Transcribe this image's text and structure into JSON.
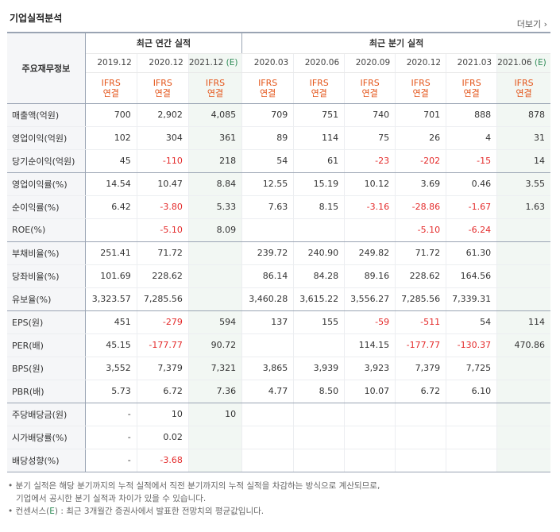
{
  "title": "기업실적분석",
  "more": "더보기",
  "header": {
    "row_label": "주요재무정보",
    "annual": "최근 연간 실적",
    "quarter": "최근 분기 실적",
    "periods": [
      "2019.12",
      "2020.12",
      "2021.12",
      "2020.03",
      "2020.06",
      "2020.09",
      "2020.12",
      "2021.03",
      "2021.06"
    ],
    "est_mark": "(E)",
    "ifrs": "IFRS",
    "consol": "연결"
  },
  "rows": [
    {
      "label": "매출액(억원)",
      "values": [
        "700",
        "2,902",
        "4,085",
        "709",
        "751",
        "740",
        "701",
        "888",
        "878"
      ]
    },
    {
      "label": "영업이익(억원)",
      "values": [
        "102",
        "304",
        "361",
        "89",
        "114",
        "75",
        "26",
        "4",
        "31"
      ]
    },
    {
      "label": "당기순이익(억원)",
      "values": [
        "45",
        "-110",
        "218",
        "54",
        "61",
        "-23",
        "-202",
        "-15",
        "14"
      ]
    },
    {
      "label": "영업이익률(%)",
      "values": [
        "14.54",
        "10.47",
        "8.84",
        "12.55",
        "15.19",
        "10.12",
        "3.69",
        "0.46",
        "3.55"
      ]
    },
    {
      "label": "순이익률(%)",
      "values": [
        "6.42",
        "-3.80",
        "5.33",
        "7.63",
        "8.15",
        "-3.16",
        "-28.86",
        "-1.67",
        "1.63"
      ]
    },
    {
      "label": "ROE(%)",
      "values": [
        "",
        "-5.10",
        "8.09",
        "",
        "",
        "",
        "-5.10",
        "-6.24",
        ""
      ]
    },
    {
      "label": "부채비율(%)",
      "values": [
        "251.41",
        "71.72",
        "",
        "239.72",
        "240.90",
        "249.82",
        "71.72",
        "61.30",
        ""
      ]
    },
    {
      "label": "당좌비율(%)",
      "values": [
        "101.69",
        "228.62",
        "",
        "86.14",
        "84.28",
        "89.16",
        "228.62",
        "164.56",
        ""
      ]
    },
    {
      "label": "유보율(%)",
      "values": [
        "3,323.57",
        "7,285.56",
        "",
        "3,460.28",
        "3,615.22",
        "3,556.27",
        "7,285.56",
        "7,339.31",
        ""
      ]
    },
    {
      "label": "EPS(원)",
      "values": [
        "451",
        "-279",
        "594",
        "137",
        "155",
        "-59",
        "-511",
        "54",
        "114"
      ]
    },
    {
      "label": "PER(배)",
      "values": [
        "45.15",
        "-177.77",
        "90.72",
        "",
        "",
        "114.15",
        "-177.77",
        "-130.37",
        "470.86"
      ]
    },
    {
      "label": "BPS(원)",
      "values": [
        "3,552",
        "7,379",
        "7,321",
        "3,865",
        "3,939",
        "3,923",
        "7,379",
        "7,725",
        ""
      ]
    },
    {
      "label": "PBR(배)",
      "values": [
        "5.73",
        "6.72",
        "7.36",
        "4.77",
        "8.50",
        "10.07",
        "6.72",
        "6.10",
        ""
      ]
    },
    {
      "label": "주당배당금(원)",
      "values": [
        "-",
        "10",
        "10",
        "",
        "",
        "",
        "",
        "",
        ""
      ]
    },
    {
      "label": "시가배당률(%)",
      "values": [
        "-",
        "0.02",
        "",
        "",
        "",
        "",
        "",
        "",
        ""
      ]
    },
    {
      "label": "배당성향(%)",
      "values": [
        "-",
        "-3.68",
        "",
        "",
        "",
        "",
        "",
        "",
        ""
      ]
    }
  ],
  "notes": {
    "line1": "분기 실적은 해당 분기까지의 누적 실적에서 직전 분기까지의 누적 실적을 차감하는 방식으로 계산되므로,",
    "line2": "기업에서 공시한 분기 실적과 차이가 있을 수 있습니다.",
    "line3_a": "컨센서스(",
    "line3_e": "E",
    "line3_b": ") : 최근 3개월간 증권사에서 발표한 전망치의 평균값입니다."
  }
}
